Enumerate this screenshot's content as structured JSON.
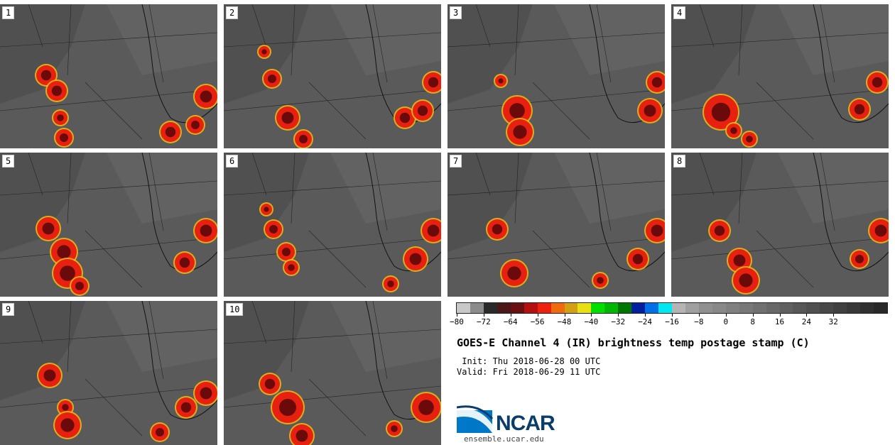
{
  "panels": [
    {
      "label": "1"
    },
    {
      "label": "2"
    },
    {
      "label": "3"
    },
    {
      "label": "4"
    },
    {
      "label": "5"
    },
    {
      "label": "6"
    },
    {
      "label": "7"
    },
    {
      "label": "8"
    },
    {
      "label": "9"
    },
    {
      "label": "10"
    }
  ],
  "colorbar": {
    "colors": [
      "#c8c8c8",
      "#8c8c8c",
      "#2a2a2a",
      "#4a1818",
      "#6a1010",
      "#b41010",
      "#ee2010",
      "#f06a10",
      "#d2a010",
      "#e8e010",
      "#00e000",
      "#00b800",
      "#007800",
      "#0020a0",
      "#0070e8",
      "#00e8f0",
      "#b4b4b4",
      "#a0a0a0",
      "#909090",
      "#888888",
      "#808080",
      "#787878",
      "#707070",
      "#686868",
      "#606060",
      "#585858",
      "#505050",
      "#484848",
      "#404040",
      "#383838",
      "#303030",
      "#282828"
    ],
    "tick_labels": [
      "-80",
      "-72",
      "-64",
      "-56",
      "-48",
      "-40",
      "-32",
      "-24",
      "-16",
      "-8",
      "0",
      "8",
      "16",
      "24",
      "32"
    ]
  },
  "title": "GOES-E Channel 4 (IR) brightness temp postage stamp (C)",
  "init_text": " Init: Thu 2018-06-28 00 UTC",
  "valid_text": "Valid: Fri 2018-06-29 11 UTC",
  "logo": {
    "name": "NCAR",
    "url": "ensemble.ucar.edu"
  }
}
